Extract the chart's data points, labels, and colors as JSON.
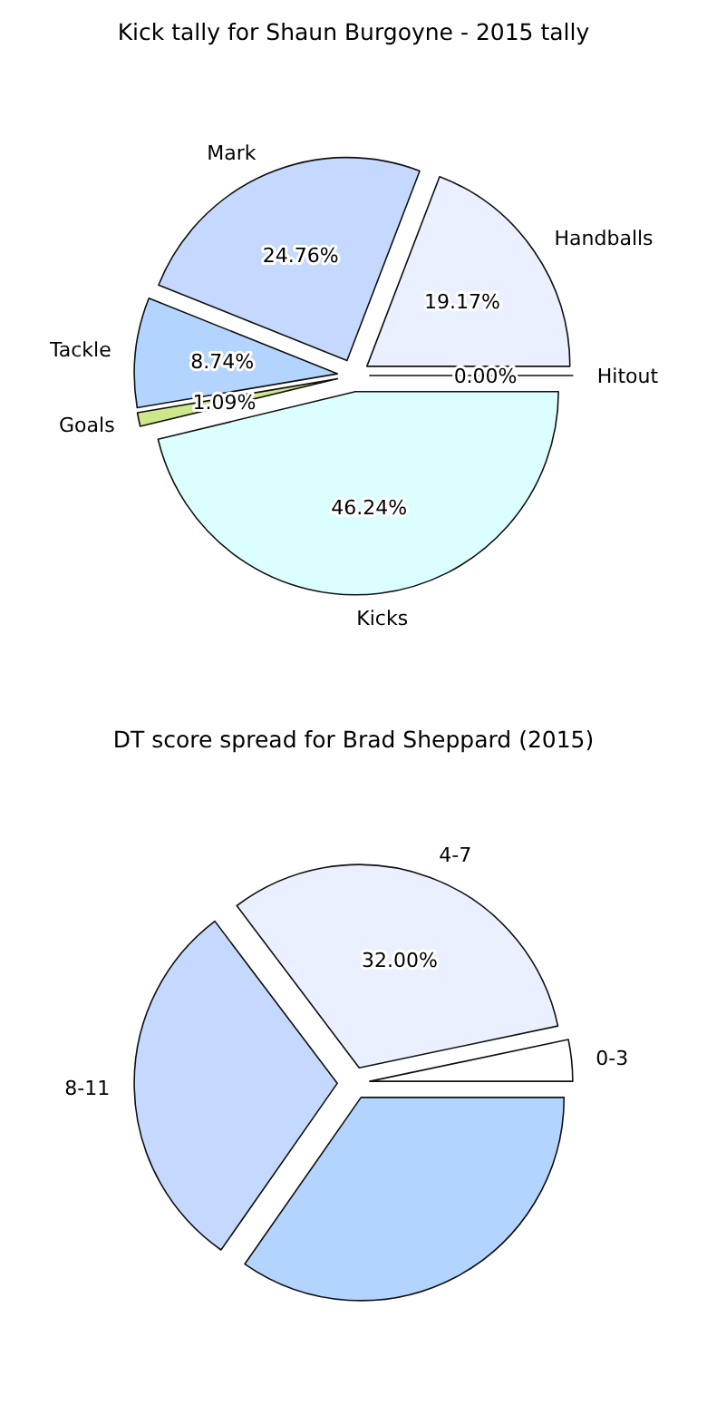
{
  "chart_data": [
    {
      "type": "pie",
      "title": "Kick tally for Shaun Burgoyne - 2015 tally",
      "categories": [
        "Handballs",
        "Mark",
        "Tackle",
        "Goals",
        "Kicks",
        "Hitout"
      ],
      "values": [
        19.17,
        24.76,
        8.74,
        1.09,
        46.24,
        0.0
      ],
      "colors": [
        "#eaf0ff",
        "#c5d9ff",
        "#b3d4ff",
        "#cce88a",
        "#dbffff",
        "#eaf0ff"
      ],
      "value_labels": [
        "19.17%",
        "24.76%",
        "8.74%",
        "1.09%",
        "46.24%",
        "0.00%"
      ]
    },
    {
      "type": "pie",
      "title": "DT score spread for Brad Sheppard (2015)",
      "categories": [
        "0-3",
        "4-7",
        "8-11",
        null
      ],
      "values": [
        3.3,
        32.0,
        30.0,
        34.7
      ],
      "colors": [
        "#ffffff",
        "#eaf0ff",
        "#c5d9ff",
        "#b3d4ff"
      ],
      "value_labels": [
        null,
        "32.00%",
        null,
        null
      ]
    }
  ]
}
